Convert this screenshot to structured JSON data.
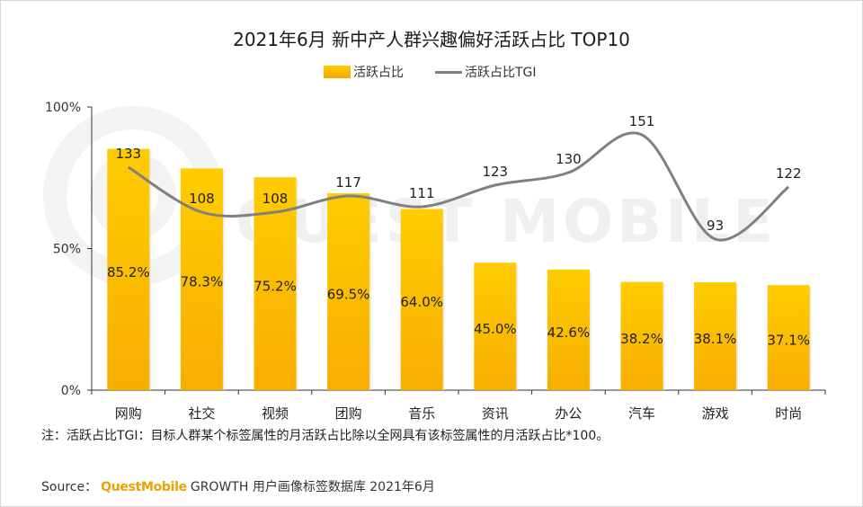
{
  "chart_data": {
    "type": "bar",
    "title": "2021年6月 新中产人群兴趣偏好活跃占比 TOP10",
    "categories": [
      "网购",
      "社交",
      "视频",
      "团购",
      "音乐",
      "资讯",
      "办公",
      "汽车",
      "游戏",
      "时尚"
    ],
    "series": [
      {
        "name": "活跃占比",
        "type": "bar",
        "values": [
          85.2,
          78.3,
          75.2,
          69.5,
          64.0,
          45.0,
          42.6,
          38.2,
          38.1,
          37.1
        ],
        "labels": [
          "85.2%",
          "78.3%",
          "75.2%",
          "69.5%",
          "64.0%",
          "45.0%",
          "42.6%",
          "38.2%",
          "38.1%",
          "37.1%"
        ],
        "color": "#f9bf00"
      },
      {
        "name": "活跃占比TGI",
        "type": "line",
        "values": [
          133,
          108,
          108,
          117,
          111,
          123,
          130,
          151,
          93,
          122
        ],
        "labels": [
          "133",
          "108",
          "108",
          "117",
          "111",
          "123",
          "130",
          "151",
          "93",
          "122"
        ],
        "color": "#808080"
      }
    ],
    "y_ticks": [
      "0%",
      "50%",
      "100%"
    ],
    "ylim": [
      0,
      100
    ],
    "legend": "top-center"
  },
  "note": "注：活跃占比TGI：目标人群某个标签属性的月活跃占比除以全网具有该标签属性的月活跃占比*100。",
  "source": {
    "label": "Source：",
    "brand": "QuestMobile",
    "text": "GROWTH 用户画像标签数据库 2021年6月"
  },
  "watermark": "QUEST MOBILE"
}
